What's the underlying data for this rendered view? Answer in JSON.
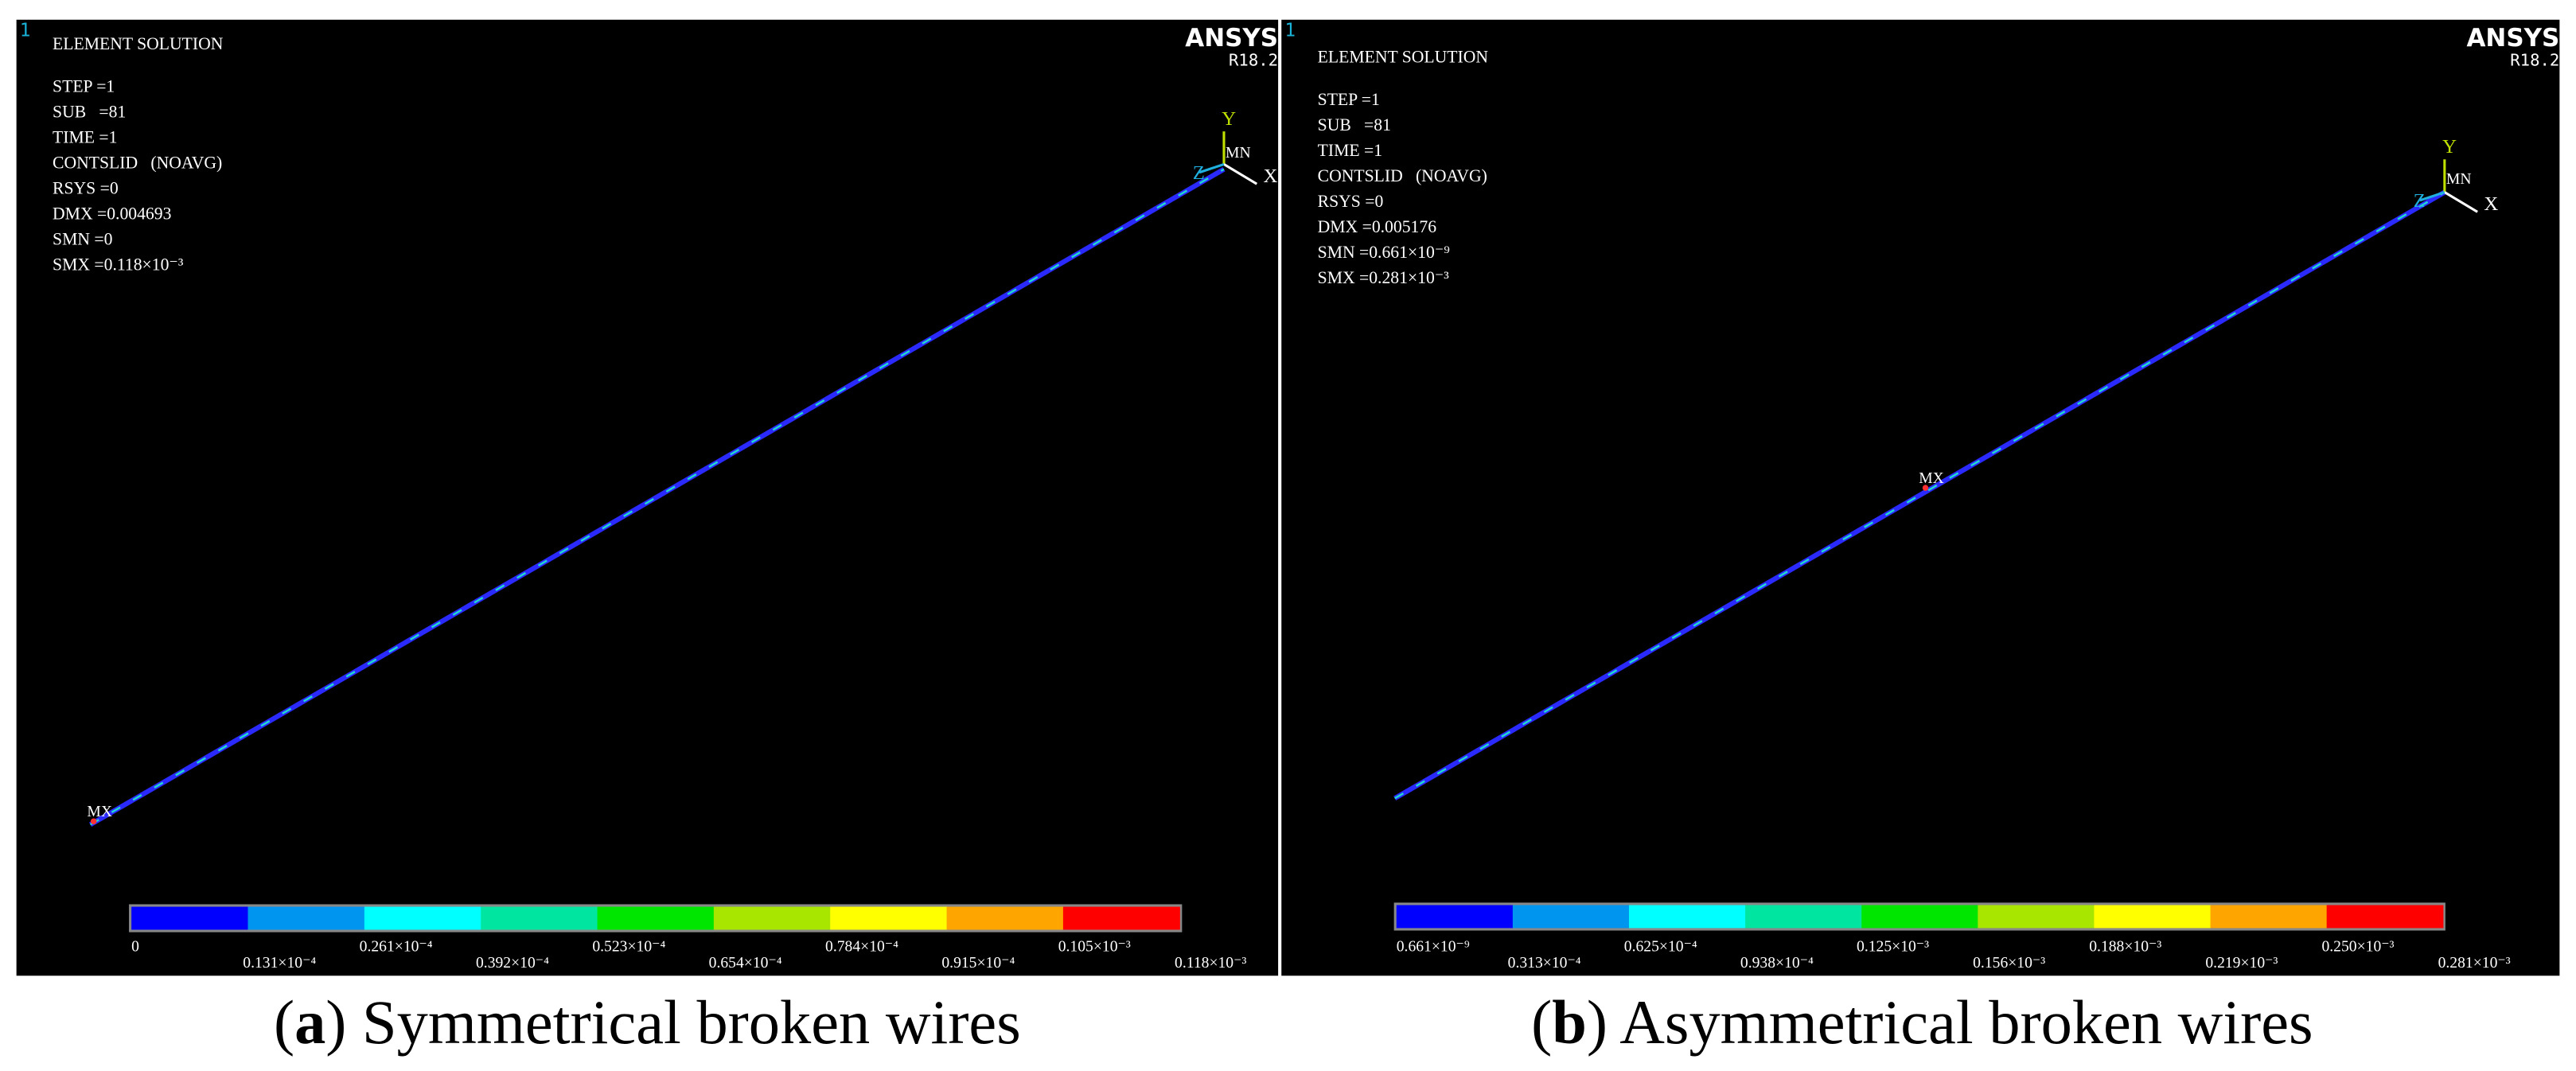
{
  "panels": [
    {
      "window_number": "1",
      "title": "ELEMENT SOLUTION",
      "info": [
        "STEP =1",
        "SUB   =81",
        "TIME =1",
        "CONTSLID   (NOAVG)",
        "RSYS =0",
        "DMX =0.004693",
        "SMN =0",
        "SMX =0.118×10⁻³"
      ],
      "logo": "ANSYS",
      "version": "R18.2",
      "triad": {
        "y": "Y",
        "z": "Z",
        "x": "X"
      },
      "min_label": "MN",
      "max_label": "MX",
      "legend": {
        "colors": [
          "#0000ff",
          "#0096f0",
          "#00ffff",
          "#00e6a0",
          "#00e600",
          "#a8e600",
          "#ffff00",
          "#ffa500",
          "#ff0000"
        ],
        "labels": [
          "0",
          "0.131×10⁻⁴",
          "0.261×10⁻⁴",
          "0.392×10⁻⁴",
          "0.523×10⁻⁴",
          "0.654×10⁻⁴",
          "0.784×10⁻⁴",
          "0.915×10⁻⁴",
          "0.105×10⁻³",
          "0.118×10⁻³"
        ]
      },
      "caption": [
        {
          "text": "(",
          "bold": false
        },
        {
          "text": "a",
          "bold": true
        },
        {
          "text": ") Symmetrical broken wires",
          "bold": false
        }
      ]
    },
    {
      "window_number": "1",
      "title": "ELEMENT SOLUTION",
      "info": [
        "STEP =1",
        "SUB   =81",
        "TIME =1",
        "CONTSLID   (NOAVG)",
        "RSYS =0",
        "DMX =0.005176",
        "SMN =0.661×10⁻⁹",
        "SMX =0.281×10⁻³"
      ],
      "logo": "ANSYS",
      "version": "R18.2",
      "triad": {
        "y": "Y",
        "z": "Z",
        "x": "X"
      },
      "min_label": "MN",
      "max_label": "MX",
      "legend": {
        "colors": [
          "#0000ff",
          "#0096f0",
          "#00ffff",
          "#00e6a0",
          "#00e600",
          "#a8e600",
          "#ffff00",
          "#ffa500",
          "#ff0000"
        ],
        "labels": [
          "0.661×10⁻⁹",
          "0.313×10⁻⁴",
          "0.625×10⁻⁴",
          "0.938×10⁻⁴",
          "0.125×10⁻³",
          "0.156×10⁻³",
          "0.188×10⁻³",
          "0.219×10⁻³",
          "0.250×10⁻³",
          "0.281×10⁻³"
        ]
      },
      "caption": [
        {
          "text": "(",
          "bold": false
        },
        {
          "text": "b",
          "bold": true
        },
        {
          "text": ") Asymmetrical broken wires",
          "bold": false
        }
      ]
    }
  ]
}
